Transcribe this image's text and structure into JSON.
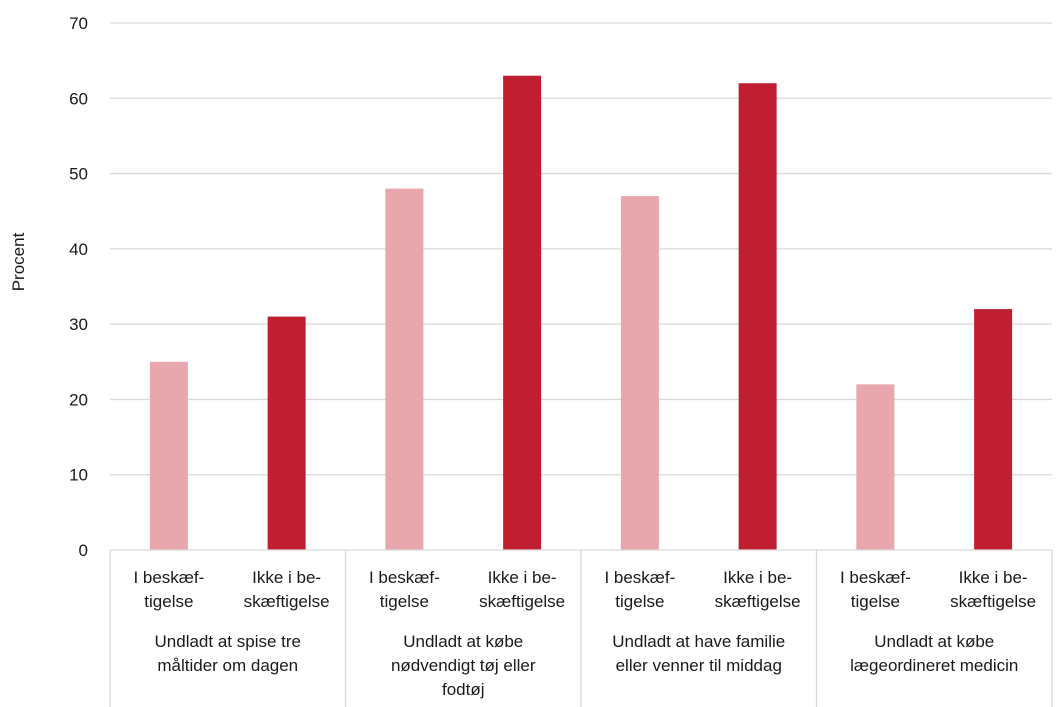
{
  "chart_data": {
    "type": "bar",
    "title": "",
    "xlabel": "",
    "ylabel": "Procent",
    "ylim": [
      0,
      70
    ],
    "yticks": [
      0,
      10,
      20,
      30,
      40,
      50,
      60,
      70
    ],
    "grid": true,
    "legend": "none",
    "colors": {
      "light": "#e8a6ad",
      "dark": "#c01f32",
      "grid": "#d9d9d9"
    },
    "groups": [
      {
        "label_lines": [
          "Undladt at spise tre",
          "måltider om dagen"
        ],
        "bars": [
          {
            "label_lines": [
              "I beskæf-",
              "tigelse"
            ],
            "value": 25,
            "shade": "light"
          },
          {
            "label_lines": [
              "Ikke i be-",
              "skæftigelse"
            ],
            "value": 31,
            "shade": "dark"
          }
        ]
      },
      {
        "label_lines": [
          "Undladt at købe",
          "nødvendigt tøj eller",
          "fodtøj"
        ],
        "bars": [
          {
            "label_lines": [
              "I beskæf-",
              "tigelse"
            ],
            "value": 48,
            "shade": "light"
          },
          {
            "label_lines": [
              "Ikke i be-",
              "skæftigelse"
            ],
            "value": 63,
            "shade": "dark"
          }
        ]
      },
      {
        "label_lines": [
          "Undladt at have familie",
          "eller venner til middag"
        ],
        "bars": [
          {
            "label_lines": [
              "I beskæf-",
              "tigelse"
            ],
            "value": 47,
            "shade": "light"
          },
          {
            "label_lines": [
              "Ikke i be-",
              "skæftigelse"
            ],
            "value": 62,
            "shade": "dark"
          }
        ]
      },
      {
        "label_lines": [
          "Undladt at købe",
          "lægeordineret medicin"
        ],
        "bars": [
          {
            "label_lines": [
              "I beskæf-",
              "tigelse"
            ],
            "value": 22,
            "shade": "light"
          },
          {
            "label_lines": [
              "Ikke i be-",
              "skæftigelse"
            ],
            "value": 32,
            "shade": "dark"
          }
        ]
      }
    ]
  }
}
